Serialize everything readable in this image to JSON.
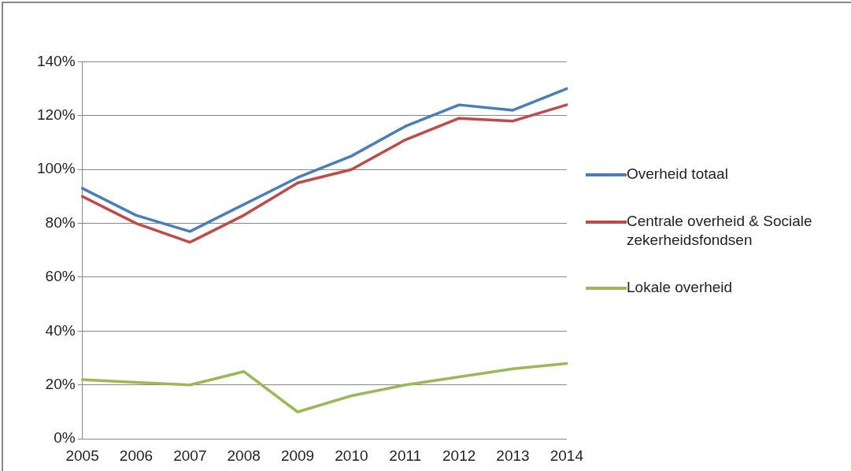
{
  "chart_data": {
    "type": "line",
    "categories": [
      "2005",
      "2006",
      "2007",
      "2008",
      "2009",
      "2010",
      "2011",
      "2012",
      "2013",
      "2014"
    ],
    "series": [
      {
        "name": "Overheid totaal",
        "color": "#4a7ebb",
        "values": [
          93,
          83,
          77,
          87,
          97,
          105,
          116,
          124,
          122,
          130
        ]
      },
      {
        "name": "Centrale overheid & Sociale zekerheidsfondsen",
        "color": "#be4b48",
        "values": [
          90,
          80,
          73,
          83,
          95,
          100,
          111,
          119,
          118,
          124
        ]
      },
      {
        "name": "Lokale overheid",
        "color": "#98b954",
        "values": [
          22,
          21,
          20,
          25,
          10,
          16,
          20,
          23,
          26,
          28
        ]
      }
    ],
    "ylim": [
      0,
      140
    ],
    "yticks": [
      {
        "value": 0,
        "label": "0%"
      },
      {
        "value": 20,
        "label": "20%"
      },
      {
        "value": 40,
        "label": "40%"
      },
      {
        "value": 60,
        "label": "60%"
      },
      {
        "value": 80,
        "label": "80%"
      },
      {
        "value": 100,
        "label": "100%"
      },
      {
        "value": 120,
        "label": "120%"
      },
      {
        "value": 140,
        "label": "140%"
      }
    ],
    "grid": "y",
    "legend": "right",
    "marker": "none",
    "line_style": "solid"
  }
}
